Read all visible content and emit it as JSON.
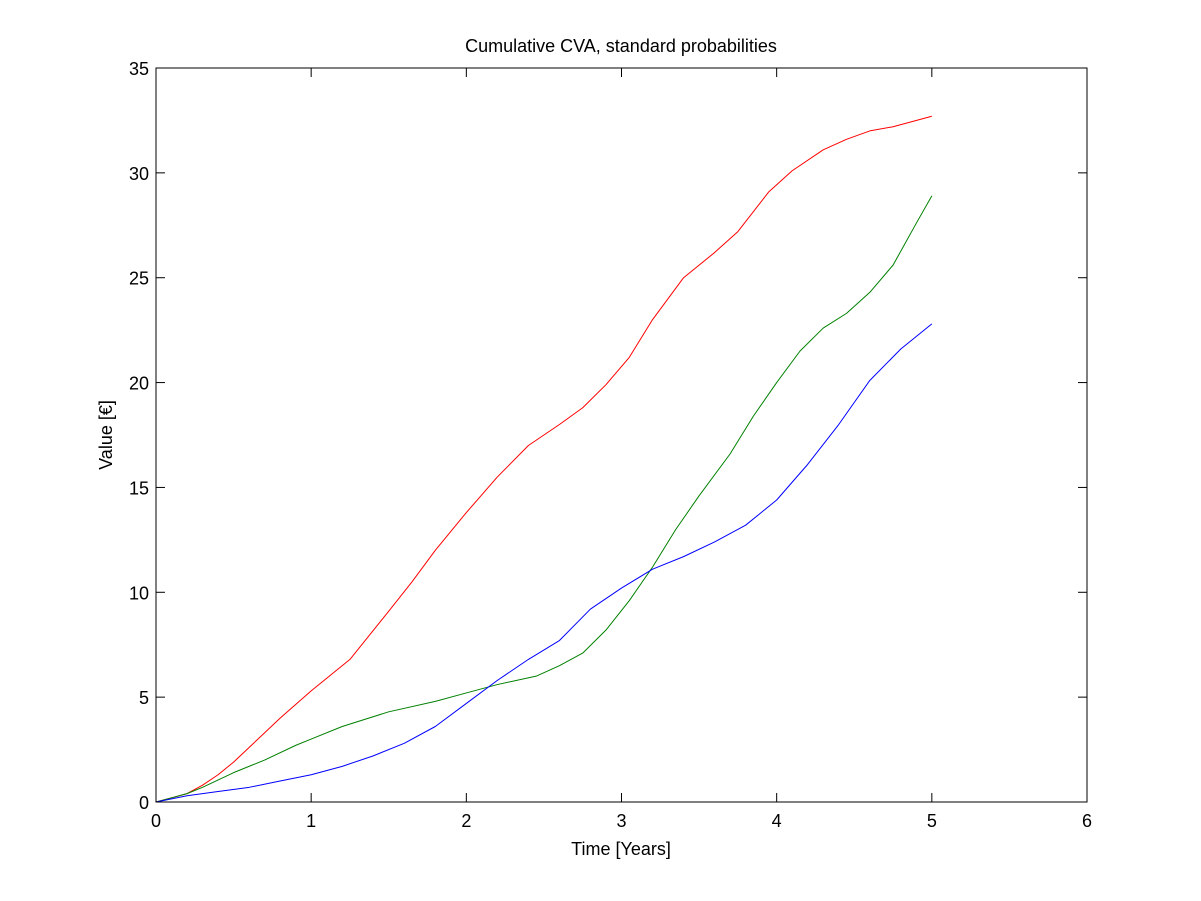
{
  "chart_data": {
    "type": "line",
    "title": "Cumulative CVA, standard probabilities",
    "xlabel": "Time [Years]",
    "ylabel": "Value [€]",
    "xlim": [
      0,
      6
    ],
    "ylim": [
      0,
      35
    ],
    "xticks": [
      "0",
      "1",
      "2",
      "3",
      "4",
      "5",
      "6"
    ],
    "yticks": [
      "0",
      "5",
      "10",
      "15",
      "20",
      "25",
      "30",
      "35"
    ],
    "grid": false,
    "legend": "none",
    "series": [
      {
        "color": "#ff0000",
        "x": [
          0,
          0.1,
          0.2,
          0.3,
          0.4,
          0.5,
          0.6,
          0.8,
          1.0,
          1.25,
          1.5,
          1.65,
          1.8,
          2.0,
          2.2,
          2.4,
          2.6,
          2.75,
          2.9,
          3.05,
          3.2,
          3.4,
          3.6,
          3.75,
          3.95,
          4.1,
          4.3,
          4.45,
          4.6,
          4.75,
          5.0
        ],
        "values": [
          0,
          0.2,
          0.4,
          0.8,
          1.3,
          1.9,
          2.6,
          4.0,
          5.3,
          6.8,
          9.1,
          10.5,
          12.0,
          13.8,
          15.5,
          17.0,
          18.0,
          18.8,
          19.9,
          21.2,
          23.0,
          25.0,
          26.2,
          27.2,
          29.1,
          30.1,
          31.1,
          31.6,
          32.0,
          32.2,
          32.7
        ]
      },
      {
        "color": "#008000",
        "x": [
          0,
          0.1,
          0.2,
          0.3,
          0.5,
          0.7,
          0.9,
          1.0,
          1.2,
          1.5,
          1.8,
          2.0,
          2.2,
          2.45,
          2.6,
          2.75,
          2.9,
          3.05,
          3.2,
          3.35,
          3.5,
          3.7,
          3.85,
          4.0,
          4.15,
          4.3,
          4.45,
          4.6,
          4.75,
          4.9,
          5.0
        ],
        "values": [
          0,
          0.2,
          0.4,
          0.7,
          1.4,
          2.0,
          2.7,
          3.0,
          3.6,
          4.3,
          4.8,
          5.2,
          5.6,
          6.0,
          6.5,
          7.1,
          8.2,
          9.6,
          11.2,
          13.0,
          14.6,
          16.6,
          18.4,
          20.0,
          21.5,
          22.6,
          23.3,
          24.3,
          25.6,
          27.6,
          28.9
        ]
      },
      {
        "color": "#0000ff",
        "x": [
          0,
          0.2,
          0.4,
          0.6,
          0.8,
          1.0,
          1.2,
          1.4,
          1.6,
          1.8,
          2.0,
          2.2,
          2.4,
          2.6,
          2.8,
          3.0,
          3.2,
          3.4,
          3.6,
          3.8,
          4.0,
          4.2,
          4.4,
          4.6,
          4.8,
          5.0
        ],
        "values": [
          0,
          0.3,
          0.5,
          0.7,
          1.0,
          1.3,
          1.7,
          2.2,
          2.8,
          3.6,
          4.7,
          5.8,
          6.8,
          7.7,
          9.2,
          10.2,
          11.1,
          11.7,
          12.4,
          13.2,
          14.4,
          16.1,
          18.0,
          20.1,
          21.6,
          22.8
        ]
      }
    ]
  }
}
